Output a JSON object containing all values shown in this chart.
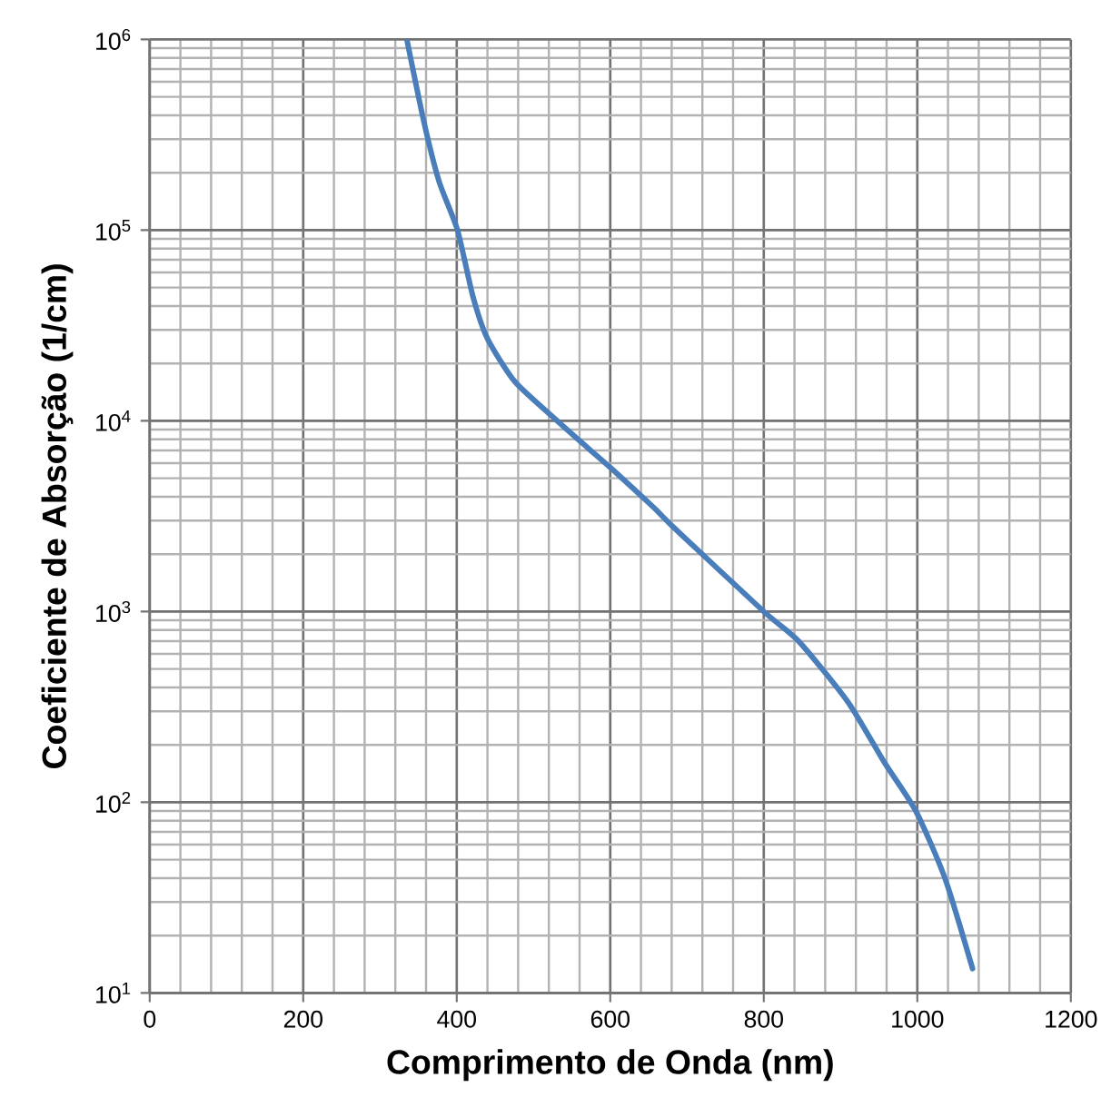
{
  "chart_data": {
    "type": "line",
    "xlabel": "Comprimento de Onda (nm)",
    "ylabel": "Coeficiente de Absorção (1/cm)",
    "x": [
      335,
      357,
      377,
      401,
      421,
      440,
      476,
      531,
      571,
      602,
      657,
      681,
      800,
      846,
      910,
      957,
      998,
      1036,
      1072
    ],
    "series": [
      {
        "color": "#4a7ebb",
        "values": [
          1000000,
          373000,
          180000,
          100000,
          45000,
          27000,
          16000,
          10000,
          7200,
          5600,
          3500,
          2800,
          1000,
          695,
          334,
          162,
          90,
          40,
          13.4
        ]
      }
    ],
    "xlim": [
      0,
      1200
    ],
    "xticks": [
      0,
      200,
      400,
      600,
      800,
      1000,
      1200
    ],
    "ylim": [
      10,
      1000000
    ],
    "yticks": [
      {
        "value": 10,
        "label": "10$^{1}$"
      },
      {
        "value": 100,
        "label": "10$^{2}$"
      },
      {
        "value": 1000,
        "label": "10$^{3}$"
      },
      {
        "value": 10000,
        "label": "10$^{4}$"
      },
      {
        "value": 100000,
        "label": "10$^{5}$"
      },
      {
        "value": 1000000,
        "label": "10$^{6}$"
      }
    ],
    "log": true,
    "grid": true,
    "marker": "none",
    "line_style": "solid"
  }
}
